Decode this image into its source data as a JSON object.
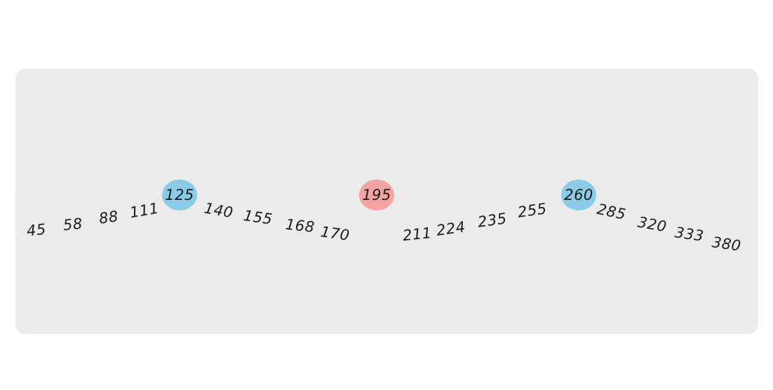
{
  "sequence": [
    "45",
    "58",
    "88",
    "111",
    "125",
    "140",
    "155",
    "168",
    "170",
    "195",
    "211",
    "224",
    "235",
    "255",
    "260",
    "285",
    "320",
    "333",
    "380"
  ],
  "highlighted": {
    "blue": [
      "125",
      "260"
    ],
    "red": [
      "195"
    ]
  },
  "colors": {
    "panel": "#ebebeb",
    "highlight_blue": "#8ccbe7",
    "highlight_red": "#f4a3a3",
    "text": "#1c1c1c"
  }
}
